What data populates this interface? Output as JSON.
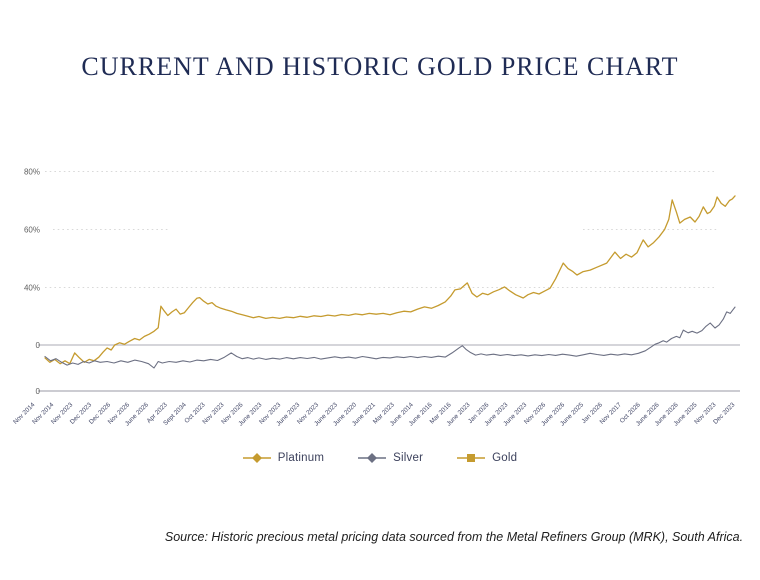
{
  "page": {
    "title": "CURRENT AND HISTORIC GOLD PRICE CHART",
    "source_note": "Source: Historic precious metal pricing data sourced from the Metal Refiners Group (MRK), South Africa."
  },
  "colors": {
    "title": "#1f2b54",
    "platinum_line": "#C59B2F",
    "silver_line": "#6C7083",
    "gold_marker": "#C59B2F",
    "grid_dotted": "#d9d9d9",
    "axis_solid": "#bcbcc4",
    "y_label": "#5f5f5f",
    "x_label": "#424767",
    "legend_text": "#3c415c"
  },
  "chart_data": {
    "type": "line",
    "title": "CURRENT AND HISTORIC GOLD PRICE CHART",
    "xlabel": "",
    "ylabel": "",
    "grid": "dotted horizontal gridlines at 40%, 60%, 80%; solid zero line and bottom baseline",
    "legend_position": "bottom",
    "y_axis": {
      "ticks": [
        {
          "label": "80%",
          "v": 80
        },
        {
          "label": "60%",
          "v": 60
        },
        {
          "label": "40%",
          "v": 40
        },
        {
          "label": "0",
          "v": 0
        },
        {
          "label": "0",
          "v": -32
        }
      ]
    },
    "x_labels": [
      "Nov 2014",
      "Nov 2014",
      "Nov 2023",
      "Dec 2023",
      "Dec 2026",
      "Nov 2026",
      "June 2026",
      "Apr 2023",
      "Sept 2034",
      "Oct 2023",
      "Nov 2023",
      "Nov 2026",
      "June 2023",
      "Nov 2023",
      "June 2023",
      "Nov 2023",
      "June 2023",
      "June 2020",
      "June 2021",
      "Mar 2023",
      "June 2014",
      "June 2016",
      "Mar 2016",
      "June 2023",
      "Jan 2026",
      "June 2023",
      "June 2023",
      "Nov 2026",
      "June 2026",
      "June 2025",
      "Jan 2026",
      "Nov 2017",
      "Oct 2026",
      "June 2026",
      "June 2026",
      "June 2025",
      "Nov 2023",
      "Dec 2023"
    ],
    "series": [
      {
        "name": "Platinum",
        "color": "#C59B2F",
        "marker": "diamond",
        "visible_line": true,
        "points": [
          [
            0,
            -9
          ],
          [
            0.7,
            -12
          ],
          [
            1.4,
            -10
          ],
          [
            2.2,
            -13
          ],
          [
            2.9,
            -11
          ],
          [
            3.6,
            -13
          ],
          [
            4.3,
            -5.5
          ],
          [
            5,
            -9
          ],
          [
            5.7,
            -12
          ],
          [
            6.4,
            -10
          ],
          [
            7.1,
            -11
          ],
          [
            7.8,
            -8.5
          ],
          [
            8.4,
            -5
          ],
          [
            9,
            -2
          ],
          [
            9.6,
            -3.5
          ],
          [
            10.1,
            0
          ],
          [
            10.8,
            1.5
          ],
          [
            11.5,
            0.5
          ],
          [
            12.2,
            2.5
          ],
          [
            13,
            4.5
          ],
          [
            13.7,
            3.5
          ],
          [
            14.4,
            6
          ],
          [
            15.1,
            7.5
          ],
          [
            15.8,
            9.5
          ],
          [
            16.4,
            12
          ],
          [
            16.8,
            27
          ],
          [
            17.3,
            23.5
          ],
          [
            17.8,
            20.5
          ],
          [
            18.4,
            23
          ],
          [
            19,
            25
          ],
          [
            19.6,
            21.5
          ],
          [
            20.2,
            22.5
          ],
          [
            20.8,
            26
          ],
          [
            21.4,
            29.5
          ],
          [
            22,
            32.5
          ],
          [
            22.4,
            33
          ],
          [
            23,
            30.5
          ],
          [
            23.6,
            28.5
          ],
          [
            24.2,
            29.5
          ],
          [
            24.8,
            27
          ],
          [
            25.5,
            25.5
          ],
          [
            26.2,
            24.5
          ],
          [
            27,
            23.5
          ],
          [
            27.8,
            22
          ],
          [
            28.6,
            21
          ],
          [
            29.4,
            20
          ],
          [
            30.2,
            19
          ],
          [
            31,
            19.8
          ],
          [
            32,
            18.5
          ],
          [
            33,
            19.2
          ],
          [
            34,
            18.5
          ],
          [
            35,
            19.5
          ],
          [
            36,
            19
          ],
          [
            37,
            20
          ],
          [
            38,
            19.3
          ],
          [
            39,
            20.3
          ],
          [
            40,
            19.8
          ],
          [
            41,
            20.8
          ],
          [
            42,
            20.2
          ],
          [
            43,
            21.2
          ],
          [
            44,
            20.6
          ],
          [
            45,
            21.6
          ],
          [
            46,
            21
          ],
          [
            47,
            22
          ],
          [
            48,
            21.4
          ],
          [
            49,
            22
          ],
          [
            50,
            21
          ],
          [
            51,
            22.5
          ],
          [
            52,
            23.5
          ],
          [
            53,
            23
          ],
          [
            54,
            25
          ],
          [
            55,
            26.5
          ],
          [
            56,
            25.5
          ],
          [
            57,
            27.5
          ],
          [
            58,
            30
          ],
          [
            58.8,
            34
          ],
          [
            59.4,
            38.3
          ],
          [
            60.2,
            39
          ],
          [
            61.2,
            41.6
          ],
          [
            61.9,
            36
          ],
          [
            62.6,
            33.4
          ],
          [
            63.4,
            36
          ],
          [
            64.2,
            35
          ],
          [
            65,
            37
          ],
          [
            65.8,
            38.5
          ],
          [
            66.6,
            40.2
          ],
          [
            67.4,
            37.5
          ],
          [
            68.2,
            35
          ],
          [
            69.3,
            32.7
          ],
          [
            70,
            35
          ],
          [
            70.8,
            36.5
          ],
          [
            71.6,
            35.5
          ],
          [
            72.4,
            37.5
          ],
          [
            73.2,
            39.5
          ],
          [
            74,
            43
          ],
          [
            75.1,
            48.4
          ],
          [
            75.8,
            46.5
          ],
          [
            76.5,
            45.5
          ],
          [
            77.1,
            44.3
          ],
          [
            78,
            45.5
          ],
          [
            79,
            46
          ],
          [
            80,
            47
          ],
          [
            81.4,
            48.4
          ],
          [
            82.6,
            52.2
          ],
          [
            83.4,
            50
          ],
          [
            84.2,
            51.5
          ],
          [
            85,
            50.5
          ],
          [
            85.8,
            52
          ],
          [
            86.7,
            56.4
          ],
          [
            87.4,
            54
          ],
          [
            88.2,
            55.5
          ],
          [
            89,
            57.5
          ],
          [
            89.8,
            60
          ],
          [
            90.4,
            63.5
          ],
          [
            90.9,
            70.2
          ],
          [
            91.5,
            66
          ],
          [
            92,
            62.2
          ],
          [
            92.7,
            63.5
          ],
          [
            93.5,
            64.3
          ],
          [
            94.2,
            62.6
          ],
          [
            94.8,
            64.5
          ],
          [
            95.4,
            67.8
          ],
          [
            96,
            65.5
          ],
          [
            96.4,
            66
          ],
          [
            97,
            68
          ],
          [
            97.4,
            71.2
          ],
          [
            98,
            69
          ],
          [
            98.6,
            68
          ],
          [
            99.2,
            70
          ],
          [
            99.6,
            70.5
          ],
          [
            100,
            71.6
          ]
        ]
      },
      {
        "name": "Silver",
        "color": "#6C7083",
        "marker": "diamond",
        "visible_line": true,
        "points": [
          [
            0,
            -8
          ],
          [
            0.8,
            -11
          ],
          [
            1.6,
            -9.5
          ],
          [
            2.4,
            -12
          ],
          [
            3.2,
            -14
          ],
          [
            4,
            -12.5
          ],
          [
            4.8,
            -13.5
          ],
          [
            5.6,
            -11.5
          ],
          [
            6.4,
            -12.5
          ],
          [
            7.2,
            -11
          ],
          [
            8,
            -12
          ],
          [
            9,
            -11.5
          ],
          [
            10,
            -12.5
          ],
          [
            11,
            -11
          ],
          [
            12,
            -12
          ],
          [
            13,
            -10.5
          ],
          [
            14,
            -11.5
          ],
          [
            15,
            -13
          ],
          [
            15.8,
            -16
          ],
          [
            16.4,
            -11.5
          ],
          [
            17,
            -12.5
          ],
          [
            18,
            -11.5
          ],
          [
            19,
            -12
          ],
          [
            20,
            -11
          ],
          [
            21,
            -11.8
          ],
          [
            22,
            -10.5
          ],
          [
            23,
            -11
          ],
          [
            24,
            -10
          ],
          [
            25,
            -10.8
          ],
          [
            26,
            -8.5
          ],
          [
            27,
            -5.5
          ],
          [
            27.8,
            -8
          ],
          [
            28.6,
            -9.5
          ],
          [
            29.4,
            -8.8
          ],
          [
            30.2,
            -9.8
          ],
          [
            31,
            -9
          ],
          [
            32,
            -10
          ],
          [
            33,
            -9.2
          ],
          [
            34,
            -9.8
          ],
          [
            35,
            -8.8
          ],
          [
            36,
            -9.6
          ],
          [
            37,
            -8.8
          ],
          [
            38,
            -9.4
          ],
          [
            39,
            -8.6
          ],
          [
            40,
            -9.8
          ],
          [
            41,
            -9
          ],
          [
            42,
            -8.2
          ],
          [
            43,
            -9
          ],
          [
            44,
            -8.4
          ],
          [
            45,
            -9.2
          ],
          [
            46,
            -8
          ],
          [
            47,
            -8.8
          ],
          [
            48,
            -9.6
          ],
          [
            49,
            -8.6
          ],
          [
            50,
            -9
          ],
          [
            51,
            -8.2
          ],
          [
            52,
            -8.8
          ],
          [
            53,
            -8
          ],
          [
            54,
            -8.8
          ],
          [
            55,
            -8
          ],
          [
            56,
            -8.6
          ],
          [
            57,
            -7.8
          ],
          [
            58,
            -8.4
          ],
          [
            59,
            -5.5
          ],
          [
            60,
            -2
          ],
          [
            60.5,
            -0.5
          ],
          [
            61,
            -3
          ],
          [
            61.6,
            -5
          ],
          [
            62.4,
            -7
          ],
          [
            63.2,
            -6.2
          ],
          [
            64,
            -7
          ],
          [
            65,
            -6.4
          ],
          [
            66,
            -7.2
          ],
          [
            67,
            -6.6
          ],
          [
            68,
            -7.4
          ],
          [
            69,
            -6.8
          ],
          [
            70,
            -7.6
          ],
          [
            71,
            -6.8
          ],
          [
            72,
            -7.4
          ],
          [
            73,
            -6.6
          ],
          [
            74,
            -7.2
          ],
          [
            75,
            -6.4
          ],
          [
            76,
            -7
          ],
          [
            77,
            -7.8
          ],
          [
            78,
            -6.8
          ],
          [
            79,
            -5.8
          ],
          [
            80,
            -6.6
          ],
          [
            81,
            -7.2
          ],
          [
            82,
            -6.4
          ],
          [
            83,
            -7
          ],
          [
            84,
            -6.2
          ],
          [
            85,
            -6.8
          ],
          [
            86,
            -5.8
          ],
          [
            87,
            -4
          ],
          [
            87.8,
            -1.5
          ],
          [
            88.4,
            0.5
          ],
          [
            89,
            1.5
          ],
          [
            89.6,
            3
          ],
          [
            90.1,
            2
          ],
          [
            90.8,
            4.5
          ],
          [
            91.5,
            6
          ],
          [
            92,
            5
          ],
          [
            92.5,
            10.4
          ],
          [
            93.2,
            8.5
          ],
          [
            93.8,
            9.5
          ],
          [
            94.5,
            8.3
          ],
          [
            95.2,
            10
          ],
          [
            95.8,
            13
          ],
          [
            96.4,
            15.3
          ],
          [
            97.1,
            11.8
          ],
          [
            97.7,
            14
          ],
          [
            98.3,
            18
          ],
          [
            98.8,
            23
          ],
          [
            99.3,
            22
          ],
          [
            99.7,
            24.5
          ],
          [
            100,
            26.4
          ]
        ]
      },
      {
        "name": "Gold",
        "color": "#C59B2F",
        "marker": "square",
        "visible_line": false,
        "points": []
      }
    ]
  }
}
